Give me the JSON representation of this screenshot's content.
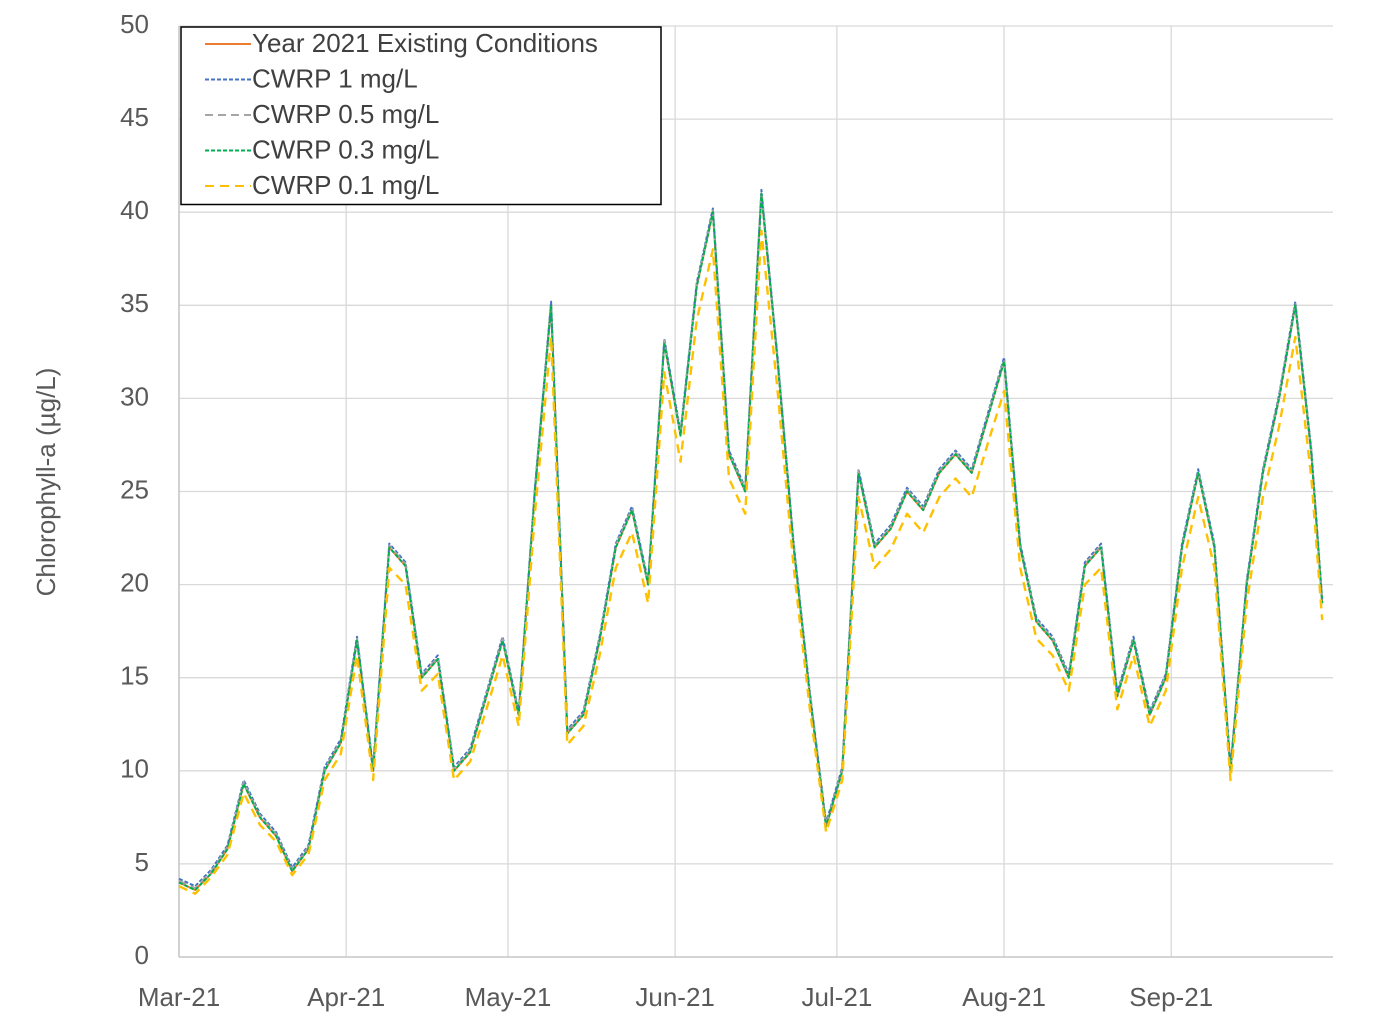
{
  "chart_data": {
    "type": "line",
    "ylabel": "Chlorophyll-a (µg/L)",
    "x": [
      0,
      3,
      6,
      9,
      12,
      15,
      18,
      21,
      24,
      27,
      30,
      33,
      36,
      39,
      42,
      45,
      48,
      51,
      54,
      57,
      60,
      63,
      66,
      69,
      72,
      75,
      78,
      81,
      84,
      87,
      90,
      93,
      96,
      99,
      102,
      105,
      108,
      111,
      114,
      117,
      120,
      123,
      126,
      129,
      132,
      135,
      138,
      141,
      144,
      147,
      150,
      153,
      156,
      159,
      162,
      165,
      168,
      171,
      174,
      177,
      180,
      183,
      186,
      189,
      192,
      195,
      198,
      201,
      204,
      207,
      210,
      212
    ],
    "xlim": [
      0,
      214
    ],
    "xticks": [
      {
        "value": 0,
        "label": "Mar-21"
      },
      {
        "value": 31,
        "label": "Apr-21"
      },
      {
        "value": 61,
        "label": "May-21"
      },
      {
        "value": 92,
        "label": "Jun-21"
      },
      {
        "value": 122,
        "label": "Jul-21"
      },
      {
        "value": 153,
        "label": "Aug-21"
      },
      {
        "value": 184,
        "label": "Sep-21"
      }
    ],
    "ylim": [
      0,
      50
    ],
    "yticks": [
      0,
      5,
      10,
      15,
      20,
      25,
      30,
      35,
      40,
      45,
      50
    ],
    "grid": true,
    "legend": "upper left",
    "series": [
      {
        "name": "Year 2021 Existing Conditions",
        "color": "#ed7d31",
        "values": [
          4,
          3.6,
          4.5,
          5.8,
          9.3,
          7.5,
          6.5,
          4.6,
          5.8,
          10,
          11.5,
          17,
          10,
          22,
          21,
          15,
          16,
          10,
          11,
          14,
          17,
          13,
          25,
          35,
          12,
          13,
          17,
          22,
          24,
          20,
          33,
          28,
          36,
          40,
          27,
          25,
          41,
          32,
          22,
          14,
          7,
          10,
          26,
          22,
          23,
          25,
          24,
          26,
          27,
          26,
          29,
          32,
          22,
          18,
          17,
          15,
          21,
          22,
          14,
          17,
          13,
          15,
          22,
          26,
          22,
          10,
          20,
          26,
          30,
          35,
          27,
          19
        ]
      },
      {
        "name": "CWRP 1 mg/L",
        "color": "#4472c4",
        "values": [
          4.2,
          3.8,
          4.7,
          6,
          9.5,
          7.7,
          6.7,
          4.8,
          6,
          10.2,
          11.7,
          17.2,
          10.2,
          22.2,
          21.2,
          15.2,
          16.2,
          10.2,
          11.2,
          14.2,
          17.2,
          13.2,
          25.2,
          35.2,
          12.2,
          13.2,
          17.2,
          22.2,
          24.2,
          20.2,
          33.2,
          28.2,
          36.2,
          40.2,
          27.2,
          25.2,
          41.2,
          32.2,
          22.2,
          14.2,
          7.2,
          10.2,
          26.2,
          22.2,
          23.2,
          25.2,
          24.2,
          26.2,
          27.2,
          26.2,
          29.2,
          32.2,
          22.2,
          18.2,
          17.2,
          15.2,
          21.2,
          22.2,
          14.2,
          17.2,
          13.2,
          15.2,
          22.2,
          26.2,
          22.2,
          10.2,
          20.2,
          26.2,
          30.2,
          35.2,
          27.2,
          19.2
        ]
      },
      {
        "name": "CWRP 0.5 mg/L",
        "color": "#a5a5a5",
        "values": [
          4.1,
          3.7,
          4.6,
          5.9,
          9.4,
          7.6,
          6.6,
          4.7,
          5.9,
          10.1,
          11.6,
          17.1,
          10.1,
          22.1,
          21.1,
          15.1,
          16.1,
          10.1,
          11.1,
          14.1,
          17.1,
          13.1,
          25.1,
          35.1,
          12.1,
          13.1,
          17.1,
          22.1,
          24.1,
          20.1,
          33.1,
          28.1,
          36.1,
          40.1,
          27.1,
          25.1,
          41.1,
          32.1,
          22.1,
          14.1,
          7.1,
          10.1,
          26.1,
          22.1,
          23.1,
          25.1,
          24.1,
          26.1,
          27.1,
          26.1,
          29.1,
          32.1,
          22.1,
          18.1,
          17.1,
          15.1,
          21.1,
          22.1,
          14.1,
          17.1,
          13.1,
          15.1,
          22.1,
          26.1,
          22.1,
          10.1,
          20.1,
          26.1,
          30.1,
          35.1,
          27.1,
          19.1
        ]
      },
      {
        "name": "CWRP 0.3 mg/L",
        "color": "#00b050",
        "values": [
          4,
          3.6,
          4.5,
          5.8,
          9.3,
          7.5,
          6.5,
          4.6,
          5.8,
          10,
          11.5,
          17,
          10,
          22,
          21,
          15,
          16,
          10,
          11,
          14,
          17,
          13,
          25,
          35,
          12,
          13,
          17,
          22,
          24,
          20,
          33,
          28,
          36,
          40,
          27,
          25,
          41,
          32,
          22,
          14,
          7,
          10,
          26,
          22,
          23,
          25,
          24,
          26,
          27,
          26,
          29,
          32,
          22,
          18,
          17,
          15,
          21,
          22,
          14,
          17,
          13,
          15,
          22,
          26,
          22,
          10,
          20,
          26,
          30,
          35,
          27,
          19
        ]
      },
      {
        "name": "CWRP 0.1 mg/L",
        "color": "#ffc000",
        "values": [
          3.8,
          3.4,
          4.3,
          5.5,
          8.8,
          7.1,
          6.2,
          4.4,
          5.5,
          9.5,
          10.9,
          16.2,
          9.5,
          20.9,
          20,
          14.3,
          15.2,
          9.5,
          10.5,
          13.3,
          16.2,
          12.4,
          23.8,
          33.3,
          11.4,
          12.4,
          16.2,
          20.9,
          22.8,
          19,
          31.4,
          26.6,
          34.2,
          38,
          25.7,
          23.8,
          39,
          30.4,
          20.9,
          13.3,
          6.7,
          9.5,
          24.7,
          20.9,
          21.9,
          23.8,
          22.8,
          24.7,
          25.7,
          24.7,
          27.6,
          30.4,
          20.9,
          17.1,
          16.2,
          14.3,
          20,
          20.9,
          13.3,
          16.2,
          12.4,
          14.3,
          20.9,
          24.7,
          20.9,
          9.5,
          19,
          24.7,
          28.5,
          33.3,
          25.7,
          18.1
        ]
      }
    ]
  }
}
